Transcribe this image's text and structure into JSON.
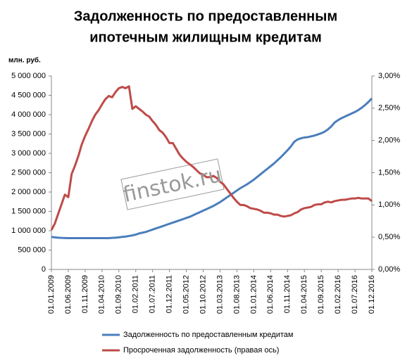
{
  "chart_data": {
    "type": "line",
    "title_lines": [
      "Задолженность по предоставленным",
      "ипотечным  жилищным кредитам"
    ],
    "y_axis_label": "млн. руб.",
    "watermark": "finstok.ru",
    "grid": false,
    "categories": [
      "01.01.2009",
      null,
      null,
      null,
      null,
      "01.06.2009",
      null,
      null,
      null,
      null,
      "01.11.2009",
      null,
      null,
      null,
      null,
      "01.04.2010",
      null,
      null,
      null,
      null,
      "01.09.2010",
      null,
      null,
      null,
      null,
      "01.02.2011",
      null,
      null,
      null,
      null,
      "01.07.2011",
      null,
      null,
      null,
      null,
      "01.12.2011",
      null,
      null,
      null,
      null,
      "01.05.2012",
      null,
      null,
      null,
      null,
      "01.10.2012",
      null,
      null,
      null,
      null,
      "01.03.2013",
      null,
      null,
      null,
      null,
      "01.08.2013",
      null,
      null,
      null,
      null,
      "01.01.2014",
      null,
      null,
      null,
      null,
      "01.06.2014",
      null,
      null,
      null,
      null,
      "01.11.2014",
      null,
      null,
      null,
      null,
      "01.04.2015",
      null,
      null,
      null,
      null,
      "01.09.2015",
      null,
      null,
      null,
      null,
      "01.02.2016",
      null,
      null,
      null,
      null,
      "01.07.2016",
      null,
      null,
      null,
      null,
      "01.12.2016"
    ],
    "ylim": [
      0,
      5000000
    ],
    "yticks": [
      {
        "value": 0,
        "label": "0"
      },
      {
        "value": 500000,
        "label": "500 000"
      },
      {
        "value": 1000000,
        "label": "1 000 000"
      },
      {
        "value": 1500000,
        "label": "1 500 000"
      },
      {
        "value": 2000000,
        "label": "2 000 000"
      },
      {
        "value": 2500000,
        "label": "2 500 000"
      },
      {
        "value": 3000000,
        "label": "3 000 000"
      },
      {
        "value": 3500000,
        "label": "3 500 000"
      },
      {
        "value": 4000000,
        "label": "4 000 000"
      },
      {
        "value": 4500000,
        "label": "4 500 000"
      },
      {
        "value": 5000000,
        "label": "5 000 000"
      }
    ],
    "y2lim": [
      0,
      3
    ],
    "y2ticks": [
      {
        "value": 0,
        "label": "0,00%"
      },
      {
        "value": 0.5,
        "label": "0,50%"
      },
      {
        "value": 1,
        "label": "1,00%"
      },
      {
        "value": 1.5,
        "label": "1,50%"
      },
      {
        "value": 2,
        "label": "2,00%"
      },
      {
        "value": 2.5,
        "label": "2,50%"
      },
      {
        "value": 3,
        "label": "3,00%"
      }
    ],
    "series": [
      {
        "name": "Задолженность по предоставленным кредитам",
        "color": "#4a7ebb",
        "values": [
          840000,
          830000,
          820000,
          815000,
          812000,
          810000,
          810000,
          810000,
          810000,
          810000,
          810000,
          810000,
          810000,
          810000,
          810000,
          810000,
          810000,
          810000,
          815000,
          820000,
          830000,
          840000,
          850000,
          865000,
          880000,
          900000,
          930000,
          950000,
          970000,
          1000000,
          1030000,
          1060000,
          1090000,
          1120000,
          1150000,
          1180000,
          1210000,
          1240000,
          1270000,
          1300000,
          1330000,
          1360000,
          1400000,
          1440000,
          1480000,
          1520000,
          1560000,
          1600000,
          1640000,
          1690000,
          1740000,
          1800000,
          1860000,
          1920000,
          1980000,
          2040000,
          2100000,
          2150000,
          2200000,
          2260000,
          2320000,
          2390000,
          2460000,
          2530000,
          2600000,
          2670000,
          2740000,
          2820000,
          2900000,
          2990000,
          3080000,
          3180000,
          3300000,
          3360000,
          3390000,
          3410000,
          3420000,
          3440000,
          3460000,
          3490000,
          3520000,
          3560000,
          3620000,
          3700000,
          3800000,
          3860000,
          3910000,
          3950000,
          3990000,
          4030000,
          4070000,
          4120000,
          4180000,
          4250000,
          4330000,
          4420000
        ]
      },
      {
        "name": "Просроченная задолженность (правая ось)",
        "color": "#be4b48",
        "axis": "y2",
        "values": [
          0.61,
          0.71,
          0.86,
          1.01,
          1.16,
          1.12,
          1.48,
          1.61,
          1.76,
          1.94,
          2.07,
          2.18,
          2.3,
          2.4,
          2.47,
          2.56,
          2.64,
          2.69,
          2.67,
          2.75,
          2.81,
          2.83,
          2.81,
          2.84,
          2.49,
          2.53,
          2.49,
          2.45,
          2.4,
          2.37,
          2.3,
          2.24,
          2.16,
          2.12,
          2.05,
          1.96,
          1.96,
          1.87,
          1.78,
          1.72,
          1.67,
          1.63,
          1.59,
          1.54,
          1.49,
          1.47,
          1.43,
          1.43,
          1.45,
          1.42,
          1.36,
          1.32,
          1.25,
          1.18,
          1.11,
          1.05,
          1.0,
          1.0,
          0.98,
          0.95,
          0.94,
          0.93,
          0.91,
          0.88,
          0.88,
          0.87,
          0.85,
          0.85,
          0.83,
          0.82,
          0.83,
          0.84,
          0.87,
          0.89,
          0.93,
          0.95,
          0.96,
          0.97,
          1.0,
          1.01,
          1.01,
          1.04,
          1.05,
          1.04,
          1.06,
          1.07,
          1.08,
          1.08,
          1.09,
          1.1,
          1.1,
          1.11,
          1.1,
          1.1,
          1.1,
          1.06
        ]
      }
    ]
  }
}
